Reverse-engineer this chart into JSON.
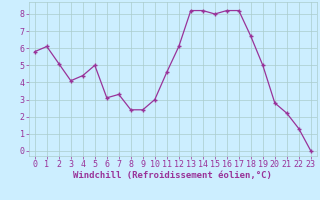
{
  "x": [
    0,
    1,
    2,
    3,
    4,
    5,
    6,
    7,
    8,
    9,
    10,
    11,
    12,
    13,
    14,
    15,
    16,
    17,
    18,
    19,
    20,
    21,
    22,
    23
  ],
  "y": [
    5.8,
    6.1,
    5.1,
    4.1,
    4.4,
    5.0,
    3.1,
    3.3,
    2.4,
    2.4,
    3.0,
    4.6,
    6.1,
    8.2,
    8.2,
    8.0,
    8.2,
    8.2,
    6.7,
    5.0,
    2.8,
    2.2,
    1.3,
    0.0
  ],
  "line_color": "#993399",
  "marker": "+",
  "marker_color": "#993399",
  "bg_color": "#cceeff",
  "grid_color": "#aacccc",
  "xlabel": "Windchill (Refroidissement éolien,°C)",
  "xlabel_color": "#993399",
  "xlabel_fontsize": 6.5,
  "tick_color": "#993399",
  "tick_fontsize": 6.0,
  "ylim": [
    -0.3,
    8.7
  ],
  "xlim": [
    -0.5,
    23.5
  ],
  "yticks": [
    0,
    1,
    2,
    3,
    4,
    5,
    6,
    7,
    8
  ],
  "xticks": [
    0,
    1,
    2,
    3,
    4,
    5,
    6,
    7,
    8,
    9,
    10,
    11,
    12,
    13,
    14,
    15,
    16,
    17,
    18,
    19,
    20,
    21,
    22,
    23
  ]
}
